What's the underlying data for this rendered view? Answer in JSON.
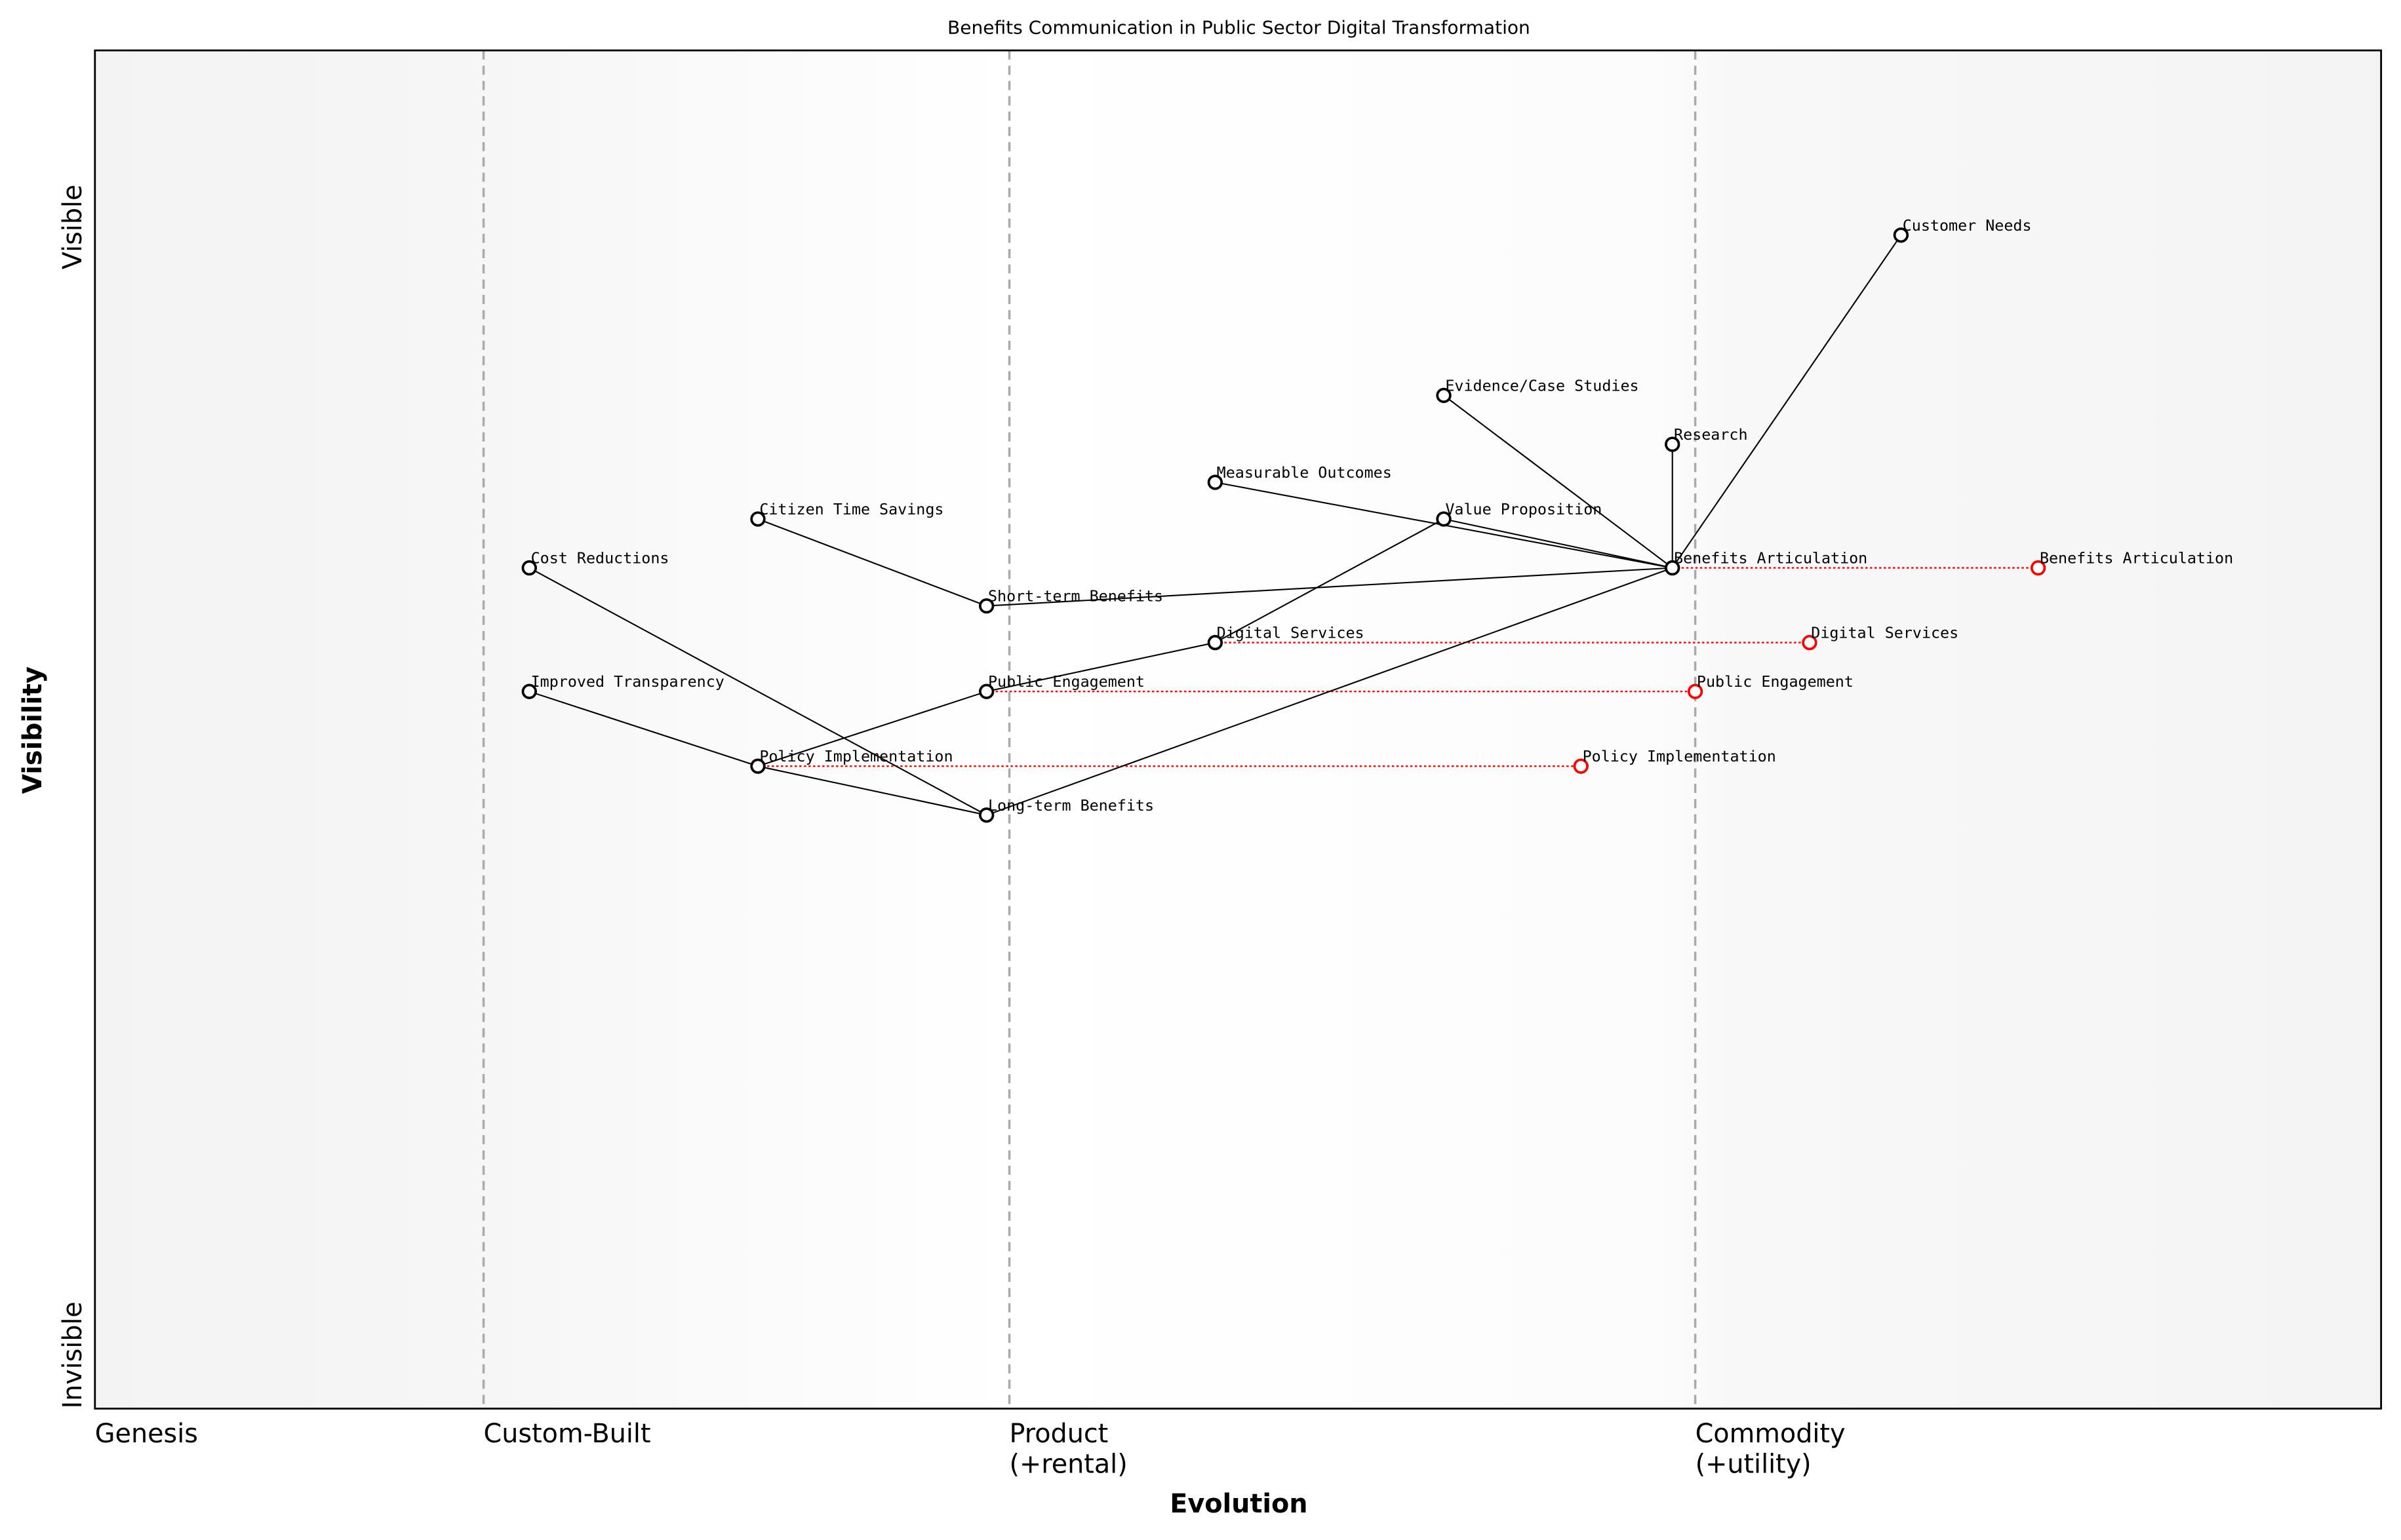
{
  "chart_data": {
    "type": "wardley-map",
    "title": "Benefits Communication in Public Sector Digital Transformation",
    "xlabel": "Evolution",
    "ylabel": "Visibility",
    "xlim": [
      0,
      1
    ],
    "ylim": [
      0,
      1
    ],
    "x_stages": [
      {
        "label": "Genesis",
        "x": 0.0,
        "divider": false
      },
      {
        "label": "Custom-Built",
        "x": 0.17,
        "divider": true
      },
      {
        "label": "Product\n(+rental)",
        "x": 0.4,
        "divider": true
      },
      {
        "label": "Commodity\n(+utility)",
        "x": 0.7,
        "divider": true
      }
    ],
    "y_ticks": [
      {
        "label": "Visible",
        "y": 0.87
      },
      {
        "label": "Invisible",
        "y": 0.0
      }
    ],
    "colors": {
      "node": "#000000",
      "evolve": "#ff0000",
      "divider": "#aaaaaa",
      "band_edge": "#f4f4f4",
      "band_mid": "#ffffff"
    },
    "nodes": [
      {
        "id": "customer_needs",
        "label": "Customer Needs",
        "x": 0.79,
        "y": 0.864
      },
      {
        "id": "evidence",
        "label": "Evidence/Case Studies",
        "x": 0.59,
        "y": 0.746
      },
      {
        "id": "research",
        "label": "Research",
        "x": 0.69,
        "y": 0.71
      },
      {
        "id": "measurable",
        "label": "Measurable Outcomes",
        "x": 0.49,
        "y": 0.682
      },
      {
        "id": "value_prop",
        "label": "Value Proposition",
        "x": 0.59,
        "y": 0.655
      },
      {
        "id": "citizen_time",
        "label": "Citizen Time Savings",
        "x": 0.29,
        "y": 0.655
      },
      {
        "id": "cost_reductions",
        "label": "Cost Reductions",
        "x": 0.19,
        "y": 0.619
      },
      {
        "id": "benefits",
        "label": "Benefits Articulation",
        "x": 0.69,
        "y": 0.619
      },
      {
        "id": "short_term",
        "label": "Short-term Benefits",
        "x": 0.39,
        "y": 0.591
      },
      {
        "id": "digital",
        "label": "Digital Services",
        "x": 0.49,
        "y": 0.564
      },
      {
        "id": "public_eng",
        "label": "Public Engagement",
        "x": 0.39,
        "y": 0.528
      },
      {
        "id": "transparency",
        "label": "Improved Transparency",
        "x": 0.19,
        "y": 0.528
      },
      {
        "id": "policy",
        "label": "Policy Implementation",
        "x": 0.29,
        "y": 0.473
      },
      {
        "id": "long_term",
        "label": "Long-term Benefits",
        "x": 0.39,
        "y": 0.437
      }
    ],
    "links": [
      [
        "customer_needs",
        "benefits"
      ],
      [
        "benefits",
        "research"
      ],
      [
        "benefits",
        "evidence"
      ],
      [
        "benefits",
        "value_prop"
      ],
      [
        "benefits",
        "measurable"
      ],
      [
        "benefits",
        "short_term"
      ],
      [
        "benefits",
        "long_term"
      ],
      [
        "value_prop",
        "digital"
      ],
      [
        "digital",
        "public_eng"
      ],
      [
        "public_eng",
        "policy"
      ],
      [
        "transparency",
        "policy"
      ],
      [
        "policy",
        "long_term"
      ],
      [
        "cost_reductions",
        "long_term"
      ],
      [
        "citizen_time",
        "short_term"
      ]
    ],
    "evolutions": [
      {
        "from": "benefits",
        "label": "Benefits Articulation",
        "x": 0.85
      },
      {
        "from": "digital",
        "label": "Digital Services",
        "x": 0.75
      },
      {
        "from": "public_eng",
        "label": "Public Engagement",
        "x": 0.7
      },
      {
        "from": "policy",
        "label": "Policy Implementation",
        "x": 0.65
      }
    ]
  }
}
